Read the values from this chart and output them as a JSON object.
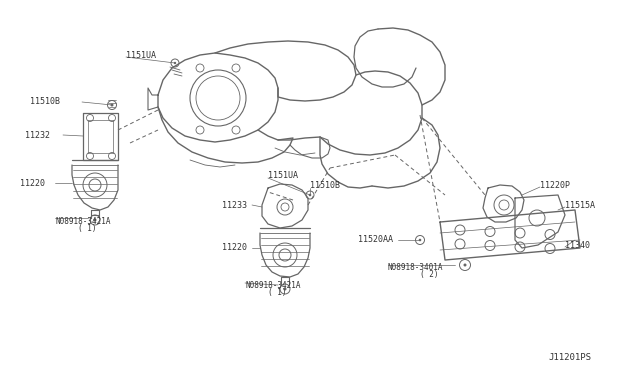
{
  "background_color": "#ffffff",
  "fig_width": 6.4,
  "fig_height": 3.72,
  "dpi": 100,
  "line_color": "#666666",
  "text_color": "#333333",
  "labels": {
    "1151UA_top": "1151UA",
    "11510B_top": "11510B",
    "11232": "11232",
    "11220_left": "11220",
    "N08918_3421A_left": "N08918-3421A",
    "N1_left": "( 1)",
    "1151UA_mid": "1151UA",
    "11510B_mid": "11510B",
    "11233": "11233",
    "11220_bot": "11220",
    "N08918_3421A_bot": "N08918-3421A",
    "N1_bot": "( 1)",
    "11520AA": "11520AA",
    "N08918_3401A": "N08918-3401A",
    "N2": "( 2)",
    "11220P": "11220P",
    "11515A": "11515A",
    "11340": "11340",
    "diagram_id": "J11201PS"
  }
}
